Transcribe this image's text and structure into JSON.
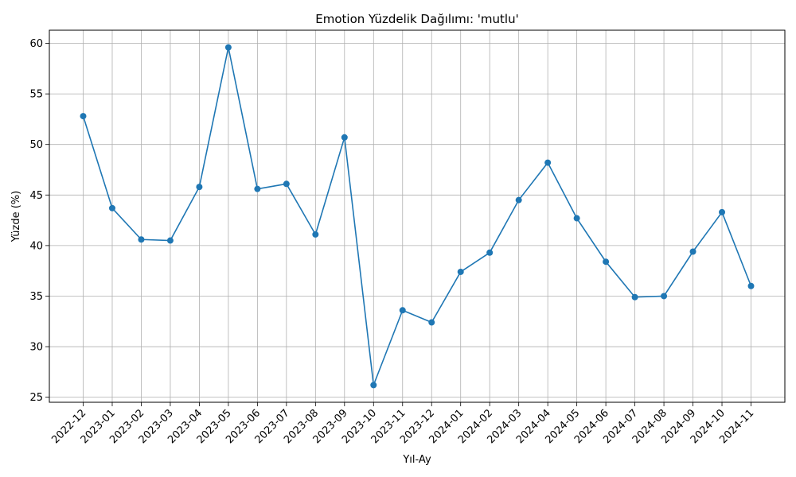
{
  "chart_data": {
    "type": "line",
    "title": "Emotion Yüzdelik Dağılımı: 'mutlu'",
    "xlabel": "Yıl-Ay",
    "ylabel": "Yüzde (%)",
    "categories": [
      "2022-12",
      "2023-01",
      "2023-02",
      "2023-03",
      "2023-04",
      "2023-05",
      "2023-06",
      "2023-07",
      "2023-08",
      "2023-09",
      "2023-10",
      "2023-11",
      "2023-12",
      "2024-01",
      "2024-02",
      "2024-03",
      "2024-04",
      "2024-05",
      "2024-06",
      "2024-07",
      "2024-08",
      "2024-09",
      "2024-10",
      "2024-11"
    ],
    "series": [
      {
        "values": [
          52.8,
          43.7,
          40.6,
          40.5,
          45.8,
          59.6,
          45.6,
          46.1,
          41.1,
          50.7,
          26.2,
          33.6,
          32.4,
          37.4,
          39.3,
          44.5,
          48.2,
          42.7,
          38.4,
          34.9,
          35.0,
          39.4,
          43.3,
          36.0
        ],
        "color": "#1f77b4"
      }
    ],
    "yticks": [
      25,
      30,
      35,
      40,
      45,
      50,
      55,
      60
    ],
    "ylim": [
      24.5,
      61.3
    ],
    "grid": true,
    "legend": "none"
  }
}
